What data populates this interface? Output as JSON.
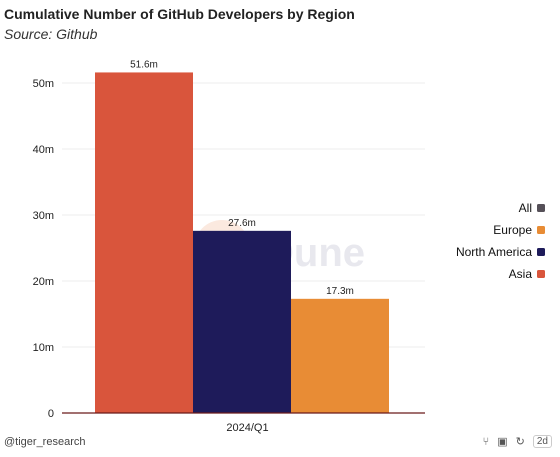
{
  "header": {
    "title": "Cumulative Number of GitHub Developers by Region",
    "subtitle": "Source: Github"
  },
  "footer": {
    "handle": "@tiger_research",
    "range_label": "2d"
  },
  "watermark": "Dune",
  "colors": {
    "Asia": "#d9553c",
    "North America": "#1e1b5a",
    "Europe": "#e88c35",
    "All": "#555058",
    "grid": "#eeeeee",
    "baseline": "#6a1a1a"
  },
  "chart_data": {
    "type": "bar",
    "categories": [
      "2024/Q1"
    ],
    "series": [
      {
        "name": "Asia",
        "values": [
          51.6
        ],
        "label": "51.6m"
      },
      {
        "name": "North America",
        "values": [
          27.6
        ],
        "label": "27.6m"
      },
      {
        "name": "Europe",
        "values": [
          17.3
        ],
        "label": "17.3m"
      }
    ],
    "legend": [
      "All",
      "Europe",
      "North America",
      "Asia"
    ],
    "legend_position": "right",
    "yticks": [
      "0",
      "10m",
      "20m",
      "30m",
      "40m",
      "50m"
    ],
    "ytick_values": [
      0,
      10,
      20,
      30,
      40,
      50
    ],
    "ylim": [
      0,
      55
    ],
    "grid": true
  }
}
